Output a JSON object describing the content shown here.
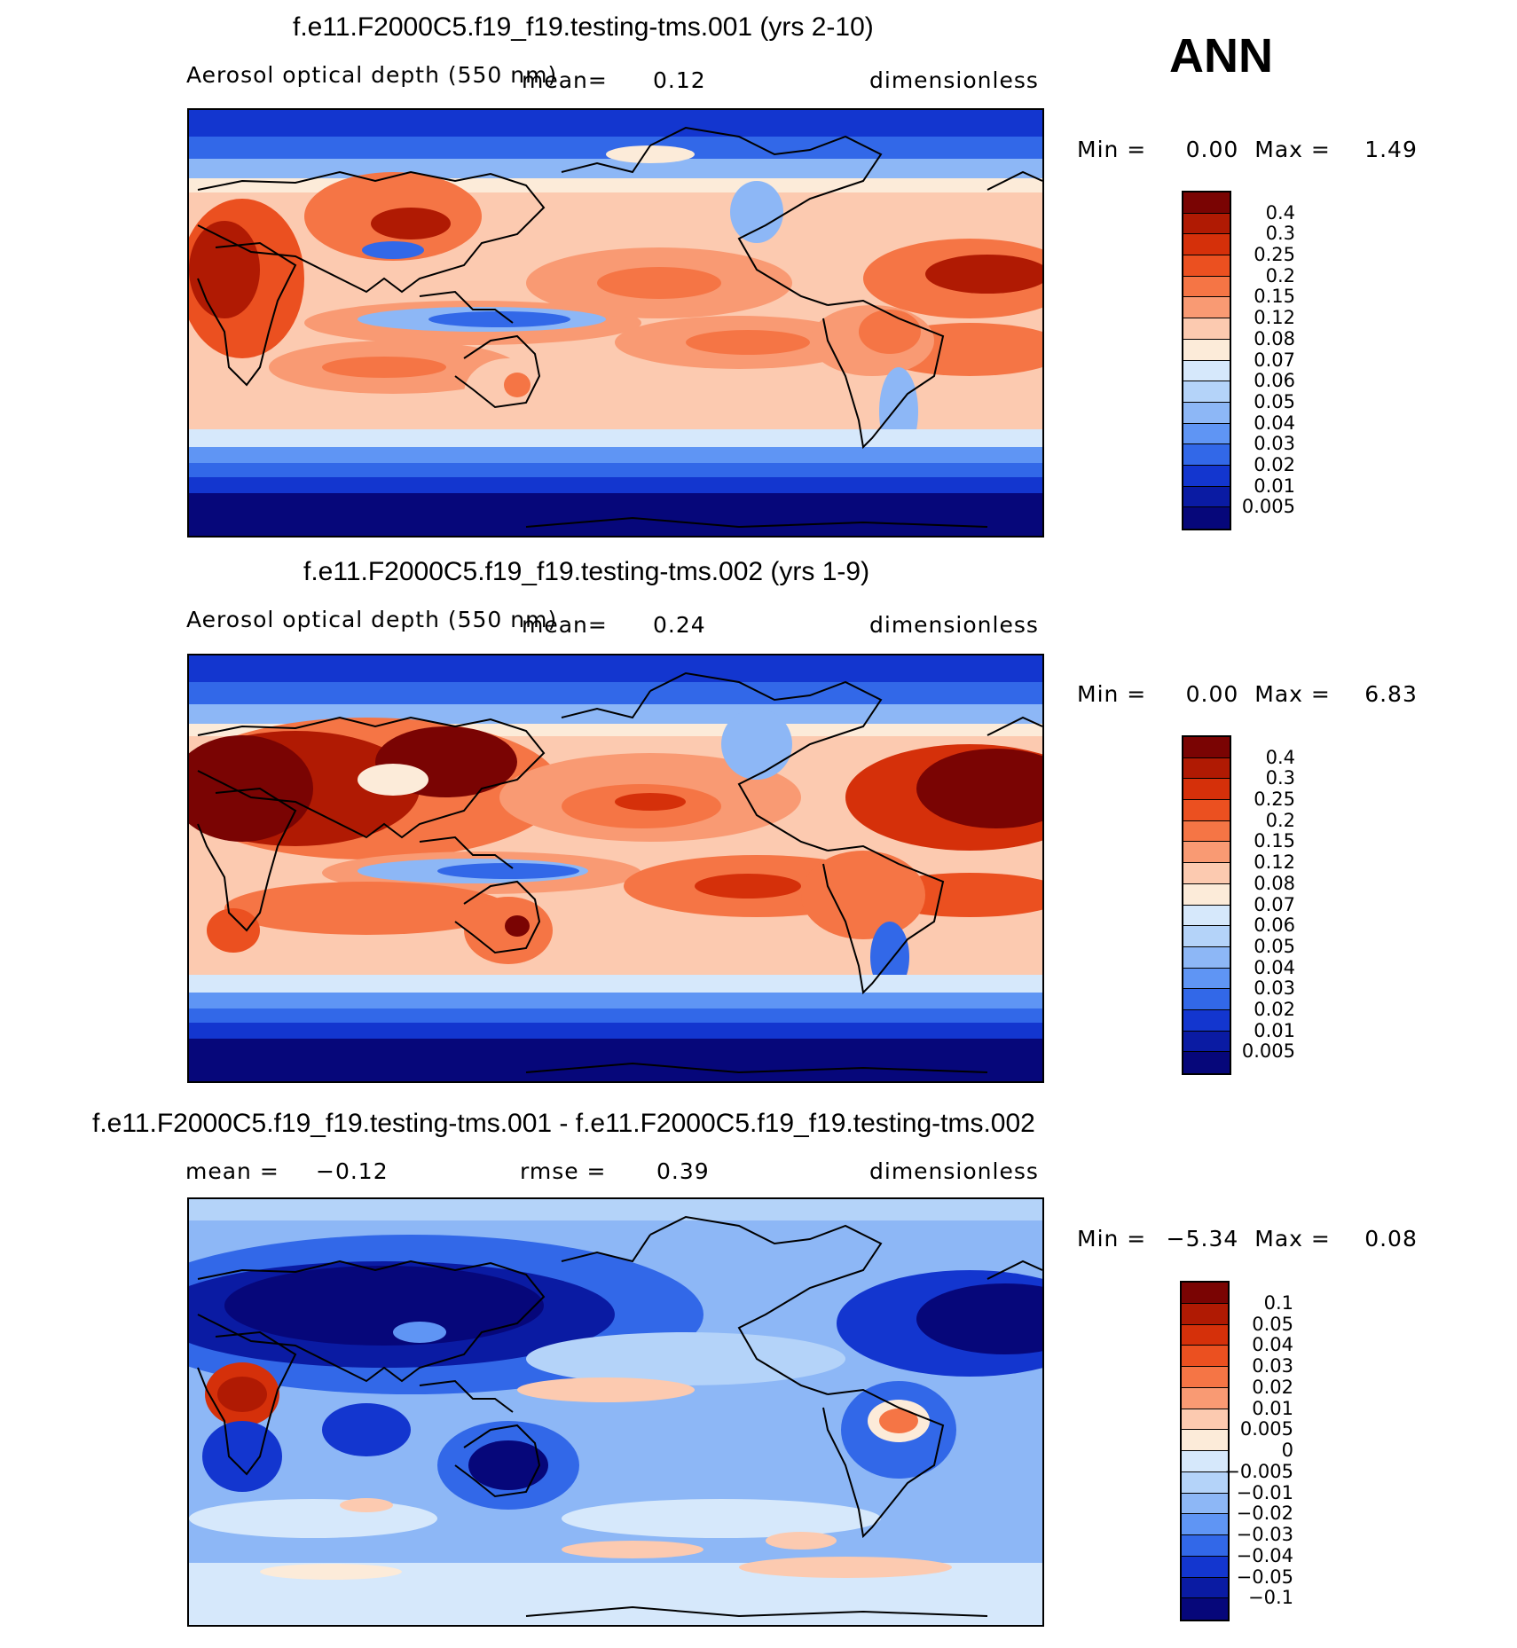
{
  "season": "ANN",
  "panels": [
    {
      "title": "f.e11.F2000C5.f19_f19.testing-tms.001 (yrs 2-10)",
      "variable": "Aerosol optical depth (550 nm)",
      "mean_label": "mean=",
      "mean_value": "0.12",
      "units": "dimensionless",
      "min_label": "Min =",
      "min_value": "0.00",
      "max_label": "Max =",
      "max_value": "1.49"
    },
    {
      "title": "f.e11.F2000C5.f19_f19.testing-tms.002 (yrs 1-9)",
      "variable": "Aerosol optical depth (550 nm)",
      "mean_label": "mean=",
      "mean_value": "0.24",
      "units": "dimensionless",
      "min_label": "Min =",
      "min_value": "0.00",
      "max_label": "Max =",
      "max_value": "6.83"
    },
    {
      "title": "f.e11.F2000C5.f19_f19.testing-tms.001 - f.e11.F2000C5.f19_f19.testing-tms.002",
      "mean_label": "mean =",
      "mean_value": "−0.12",
      "rmse_label": "rmse =",
      "rmse_value": "0.39",
      "units": "dimensionless",
      "min_label": "Min =",
      "min_value": "−5.34",
      "max_label": "Max =",
      "max_value": "0.08"
    }
  ],
  "colorbar_aod": {
    "levels": [
      "0.4",
      "0.3",
      "0.25",
      "0.2",
      "0.15",
      "0.12",
      "0.08",
      "0.07",
      "0.06",
      "0.05",
      "0.04",
      "0.03",
      "0.02",
      "0.01",
      "0.005"
    ],
    "colors": [
      "#7a0403",
      "#b01a03",
      "#d5300a",
      "#eb5020",
      "#f57545",
      "#f99a73",
      "#fccab0",
      "#fcebd9",
      "#d6e8fb",
      "#b4d3f9",
      "#8db7f6",
      "#5f95f4",
      "#3268e8",
      "#1336cf",
      "#0a1ba3",
      "#06077a"
    ]
  },
  "colorbar_diff": {
    "levels": [
      "0.1",
      "0.05",
      "0.04",
      "0.03",
      "0.02",
      "0.01",
      "0.005",
      "0",
      "−0.005",
      "−0.01",
      "−0.02",
      "−0.03",
      "−0.04",
      "−0.05",
      "−0.1"
    ],
    "colors": [
      "#7a0403",
      "#b01a03",
      "#d5300a",
      "#eb5020",
      "#f57545",
      "#f99a73",
      "#fccab0",
      "#fcebd9",
      "#d6e8fb",
      "#b4d3f9",
      "#8db7f6",
      "#5f95f4",
      "#3268e8",
      "#1336cf",
      "#0a1ba3",
      "#06077a"
    ]
  }
}
